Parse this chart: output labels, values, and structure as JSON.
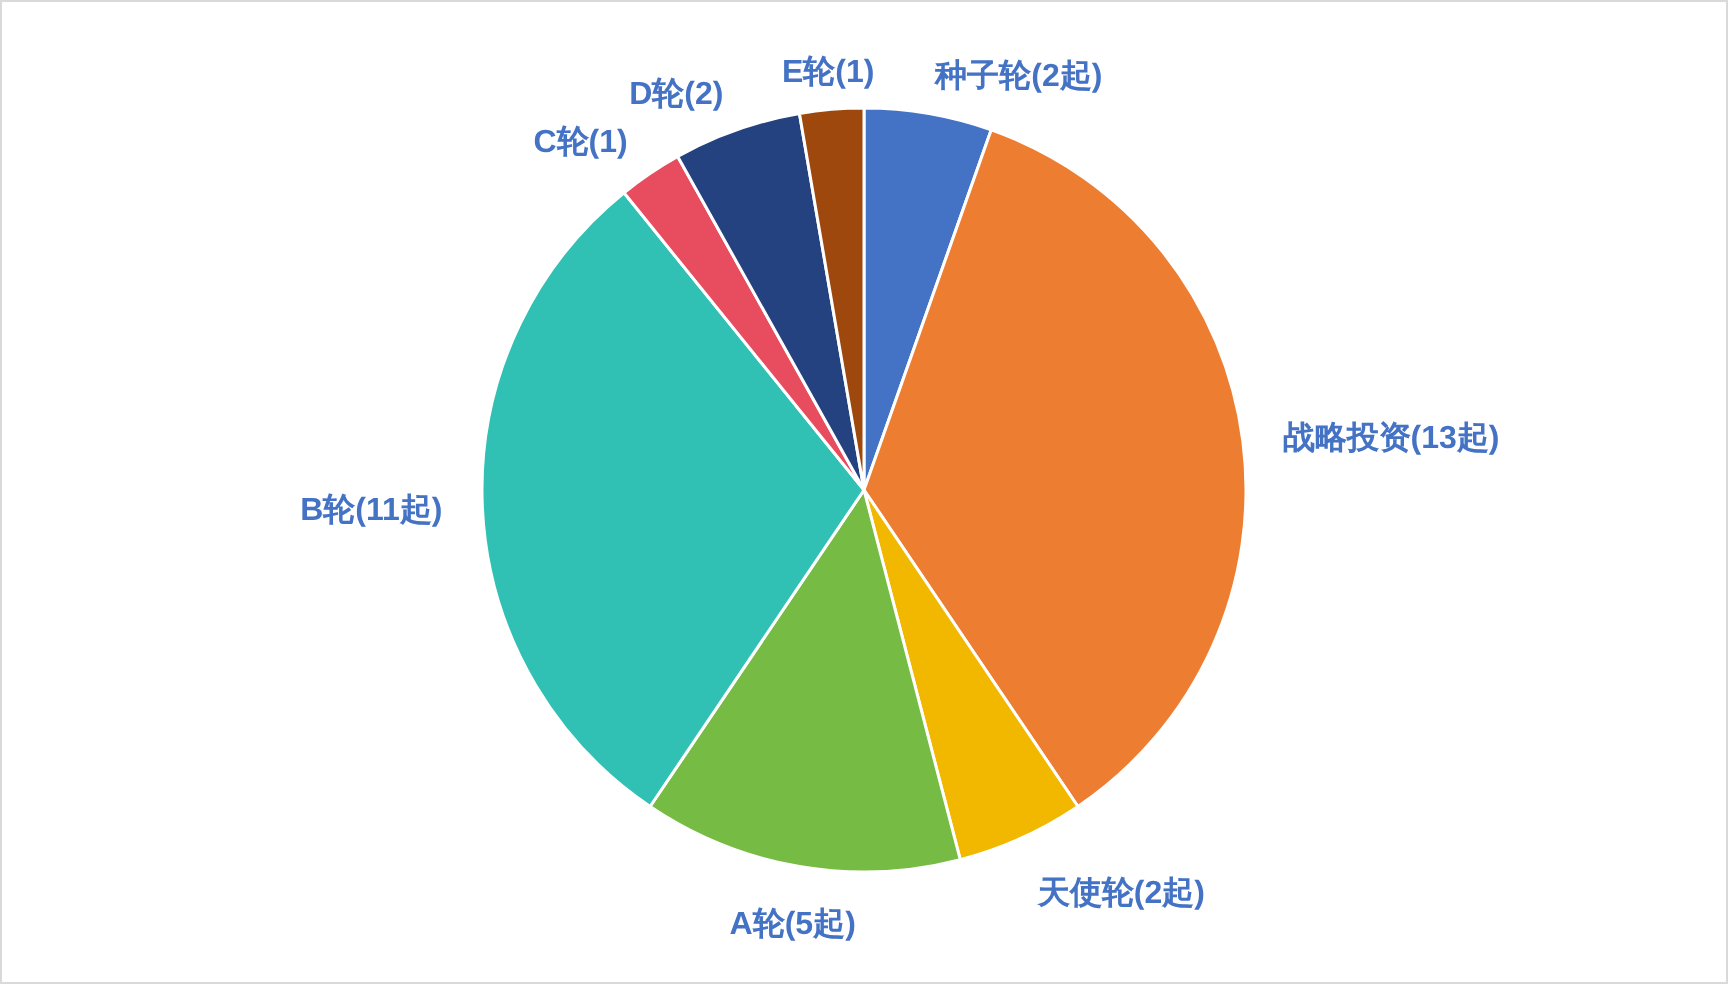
{
  "chart_data": {
    "type": "pie",
    "categories": [
      "种子轮(2起)",
      "战略投资(13起)",
      "天使轮(2起)",
      "A轮(5起)",
      "B轮(11起)",
      "C轮(1)",
      "D轮(2)",
      "E轮(1)"
    ],
    "values": [
      2,
      13,
      2,
      5,
      11,
      1,
      2,
      1
    ],
    "colors": [
      "#4472c4",
      "#ed7d31",
      "#f2b800",
      "#76bb43",
      "#30c1b4",
      "#e84c5f",
      "#24427f",
      "#9e480e"
    ]
  }
}
